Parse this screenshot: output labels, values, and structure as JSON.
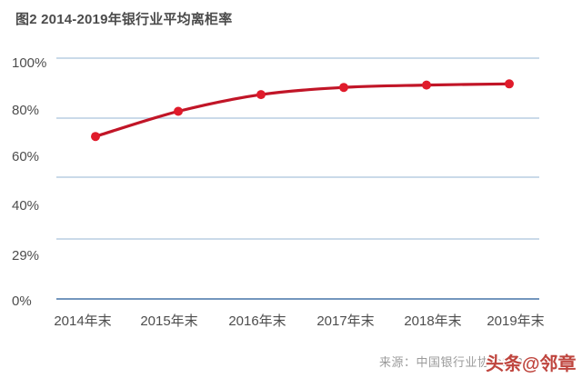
{
  "chart_data": {
    "type": "line",
    "title": "图2 2014-2019年银行业平均离柜率",
    "x": [
      "2014年末",
      "2015年末",
      "2016年末",
      "2017年末",
      "2018年末",
      "2019年末"
    ],
    "series": [
      {
        "name": "银行业平均离柜率",
        "values": [
          68,
          78.5,
          85.5,
          88.5,
          89.5,
          90
        ]
      }
    ],
    "unit": "%",
    "xlabel": "",
    "ylabel": "",
    "ylim": [
      0,
      100
    ],
    "y_tick_labels": [
      "100%",
      "80%",
      "60%",
      "40%",
      "29%",
      "0%"
    ],
    "grid": "horizontal",
    "legend": "none",
    "colors": {
      "line": "#c11527",
      "point": "#e01b2b",
      "gridline": "#b9cde2",
      "axis": "#7396bd",
      "title_text": "#4b4b4b",
      "tick_text": "#4d4d4d"
    }
  },
  "footer": {
    "source_label": "来源：中国银行业协会2020",
    "watermark": "头条@邻章"
  }
}
